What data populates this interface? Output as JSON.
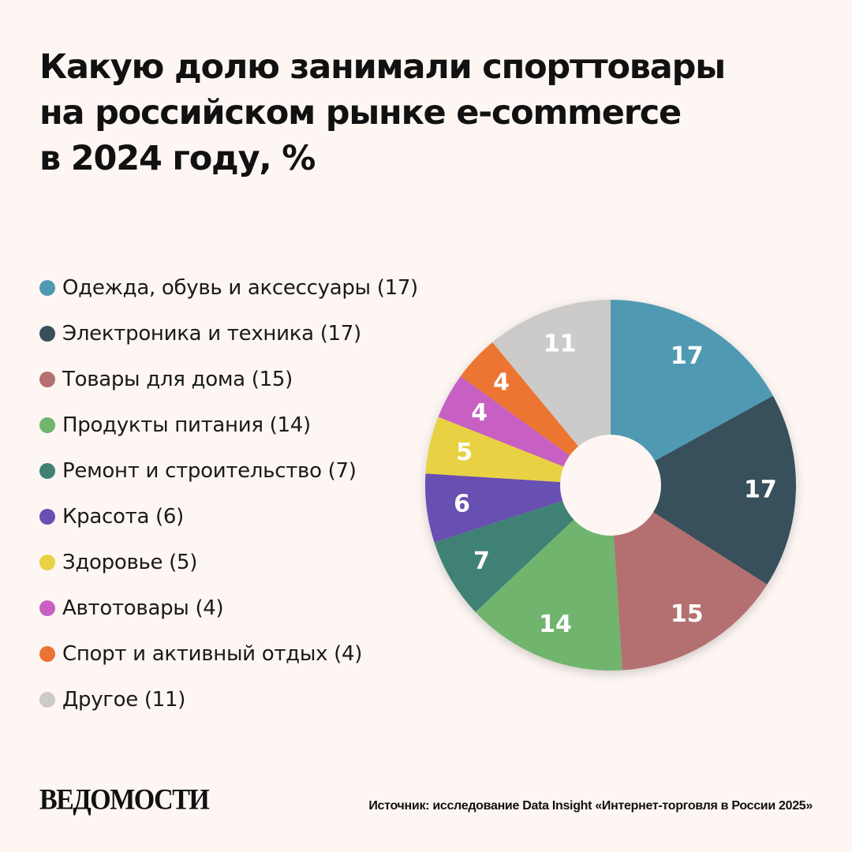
{
  "header": {
    "title_lines": [
      "Какую долю занимали спорттовары",
      "на российском рынке e-commerce",
      "в 2024 году, %"
    ]
  },
  "chart_data": {
    "type": "pie",
    "title": "Какую долю занимали спорттовары на российском рынке e-commerce в 2024 году, %",
    "donut": true,
    "start": "12 o'clock, clockwise",
    "legend_position": "left",
    "slices": [
      {
        "legend": "Одежда, обувь и аксессуары (17)",
        "value": 17,
        "label": "17",
        "color": "#4f9ab2"
      },
      {
        "legend": "Электроника и техника (17)",
        "value": 17,
        "label": "17",
        "color": "#37505b"
      },
      {
        "legend": "Товары для дома (15)",
        "value": 15,
        "label": "15",
        "color": "#b47070"
      },
      {
        "legend": "Продукты питания (14)",
        "value": 14,
        "label": "14",
        "color": "#70b46e"
      },
      {
        "legend": "Ремонт и строительство (7)",
        "value": 7,
        "label": "7",
        "color": "#418175"
      },
      {
        "legend": "Красота (6)",
        "value": 6,
        "label": "6",
        "color": "#684fb2"
      },
      {
        "legend": "Здоровье (5)",
        "value": 5,
        "label": "5",
        "color": "#e8d142"
      },
      {
        "legend": "Автотовары (4)",
        "value": 4,
        "label": "4",
        "color": "#c760c2"
      },
      {
        "legend": "Спорт и активный отдых (4)",
        "value": 4,
        "label": "4",
        "color": "#ec7432"
      },
      {
        "legend": "Другое (11)",
        "value": 11,
        "label": "11",
        "color": "#cdcbc9"
      }
    ]
  },
  "footer": {
    "logo_text": "ВЕДОМОСТИ",
    "source_text": "Источник: исследование Data Insight «Интернет-торговля в России 2025»"
  }
}
